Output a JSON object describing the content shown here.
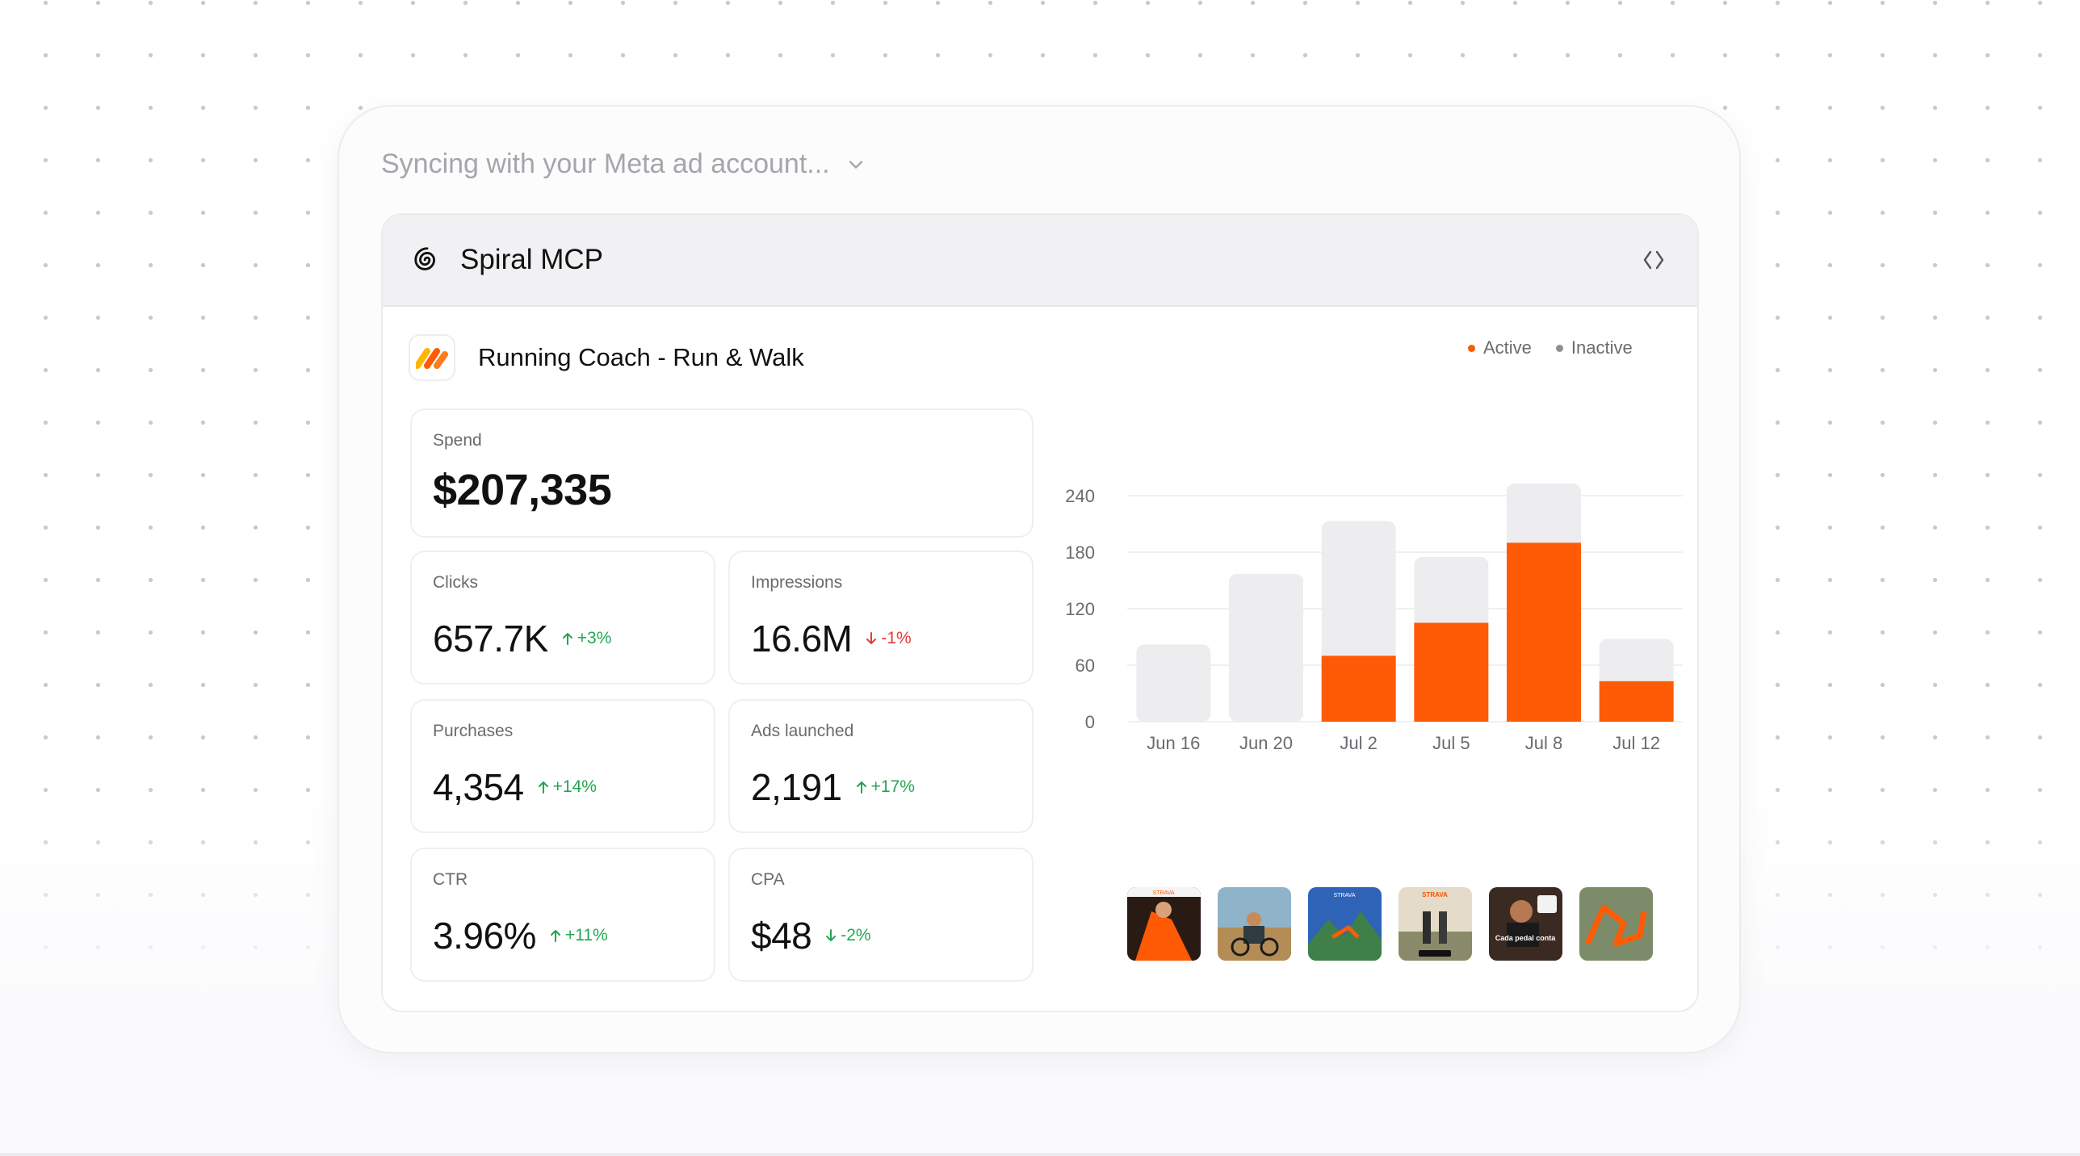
{
  "sync": {
    "text": "Syncing with your Meta ad account..."
  },
  "panel": {
    "title": "Spiral MCP"
  },
  "app": {
    "name": "Running Coach - Run & Walk"
  },
  "metrics": {
    "spend": {
      "label": "Spend",
      "value": "$207,335"
    },
    "clicks": {
      "label": "Clicks",
      "value": "657.7K",
      "delta": "+3%",
      "trend": "up"
    },
    "impressions": {
      "label": "Impressions",
      "value": "16.6M",
      "delta": "-1%",
      "trend": "down"
    },
    "purchases": {
      "label": "Purchases",
      "value": "4,354",
      "delta": "+14%",
      "trend": "up"
    },
    "ads_launched": {
      "label": "Ads launched",
      "value": "2,191",
      "delta": "+17%",
      "trend": "up"
    },
    "ctr": {
      "label": "CTR",
      "value": "3.96%",
      "delta": "+11%",
      "trend": "up"
    },
    "cpa": {
      "label": "CPA",
      "value": "$48",
      "delta": "-2%",
      "trend": "down"
    }
  },
  "colors": {
    "active": "#ff5a05",
    "inactive": "#ededef",
    "up": "#22a650",
    "down": "#e23b3b"
  },
  "chart_data": {
    "type": "bar",
    "stacked": true,
    "categories": [
      "Jun 16",
      "Jun 20",
      "Jul 2",
      "Jul 5",
      "Jul 8",
      "Jul 12"
    ],
    "series": [
      {
        "name": "Active",
        "values": [
          0,
          0,
          70,
          105,
          190,
          43
        ]
      },
      {
        "name": "Inactive",
        "values": [
          82,
          157,
          143,
          70,
          63,
          45
        ]
      }
    ],
    "yticks": [
      0,
      60,
      120,
      180,
      240
    ],
    "ylim": [
      0,
      240
    ],
    "legend": "top-right",
    "grid": true
  },
  "thumbnails": [
    {
      "name": "thumbnail-1",
      "caption": "STRAVA"
    },
    {
      "name": "thumbnail-2",
      "caption": ""
    },
    {
      "name": "thumbnail-3",
      "caption": "STRAVA"
    },
    {
      "name": "thumbnail-4",
      "caption": "STRAVA"
    },
    {
      "name": "thumbnail-5",
      "caption": "Cada pedal conta"
    },
    {
      "name": "thumbnail-6",
      "caption": ""
    }
  ]
}
